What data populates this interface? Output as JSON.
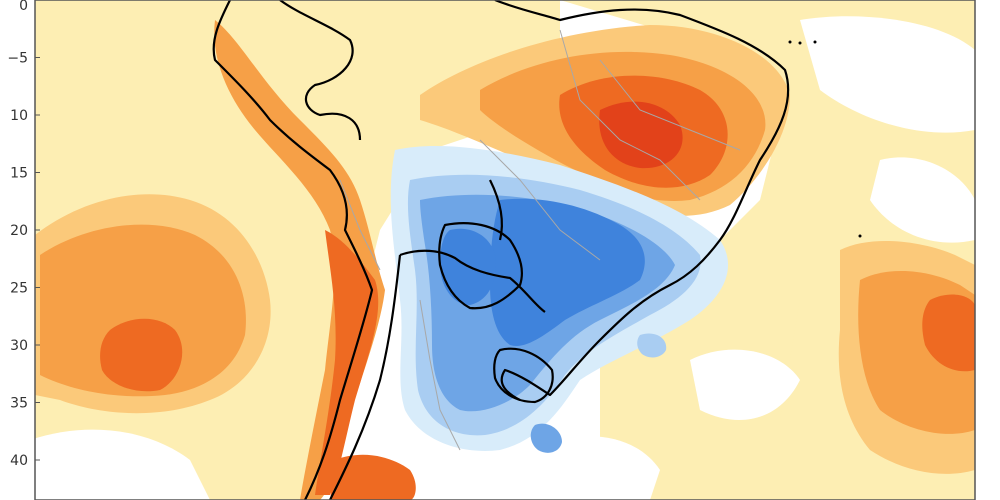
{
  "map": {
    "lat_axis": {
      "ticks": [
        {
          "value": 0,
          "label": "0"
        },
        {
          "value": -5,
          "label": "−5"
        },
        {
          "value": -10,
          "label": "10"
        },
        {
          "value": -15,
          "label": "15"
        },
        {
          "value": -20,
          "label": "20"
        },
        {
          "value": -25,
          "label": "25"
        },
        {
          "value": -30,
          "label": "30"
        },
        {
          "value": -35,
          "label": "35"
        },
        {
          "value": -40,
          "label": "40"
        }
      ]
    },
    "colors": {
      "ocean_background": "#ffffff",
      "pale_yellow": "#fdeeb3",
      "light_orange": "#fbc97a",
      "orange": "#f6a047",
      "dark_orange": "#ee6a22",
      "red_orange": "#e2421a",
      "very_light_blue": "#d8ecfa",
      "light_blue": "#a9cdf2",
      "medium_blue": "#6ea5e6",
      "blue": "#3f83dc",
      "border_color": "#000000",
      "state_border_color": "#a8a8a8"
    }
  }
}
